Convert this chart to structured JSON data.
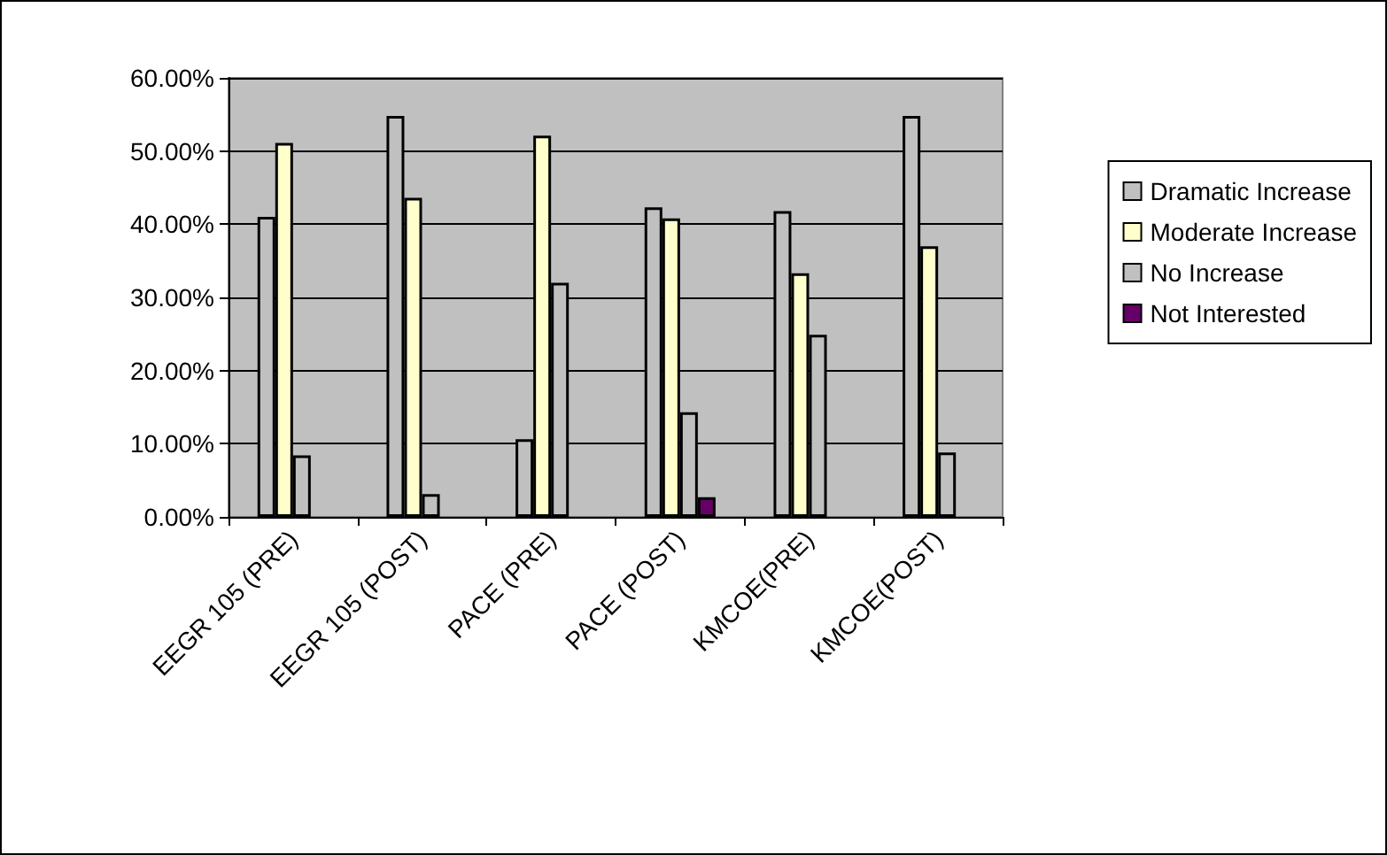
{
  "chart_data": {
    "type": "bar",
    "categories": [
      "EEGR 105 (PRE)",
      "EEGR 105 (POST)",
      "PACE (PRE)",
      "PACE (POST)",
      "KMCOE(PRE)",
      "KMCOE(POST)"
    ],
    "series": [
      {
        "name": "Dramatic Increase",
        "color": "#c0c0c0",
        "values": [
          41.0,
          54.8,
          10.6,
          42.3,
          41.8,
          54.8
        ]
      },
      {
        "name": "Moderate Increase",
        "color": "#ffffcc",
        "values": [
          51.1,
          43.6,
          52.1,
          40.8,
          33.3,
          37.0
        ]
      },
      {
        "name": "No Increase",
        "color": "#c0c0c0",
        "values": [
          8.4,
          3.1,
          32.0,
          14.3,
          24.9,
          8.8
        ]
      },
      {
        "name": "Not Interested",
        "color": "#660066",
        "values": [
          null,
          null,
          null,
          2.7,
          null,
          null
        ]
      }
    ],
    "ylim": [
      0,
      60
    ],
    "yticks": [
      {
        "value": 0,
        "label": "0.00%"
      },
      {
        "value": 10,
        "label": "10.00%"
      },
      {
        "value": 20,
        "label": "20.00%"
      },
      {
        "value": 30,
        "label": "30.00%"
      },
      {
        "value": 40,
        "label": "40.00%"
      },
      {
        "value": 50,
        "label": "50.00%"
      },
      {
        "value": 60,
        "label": "60.00%"
      }
    ],
    "grid": "y",
    "legend": "right"
  }
}
